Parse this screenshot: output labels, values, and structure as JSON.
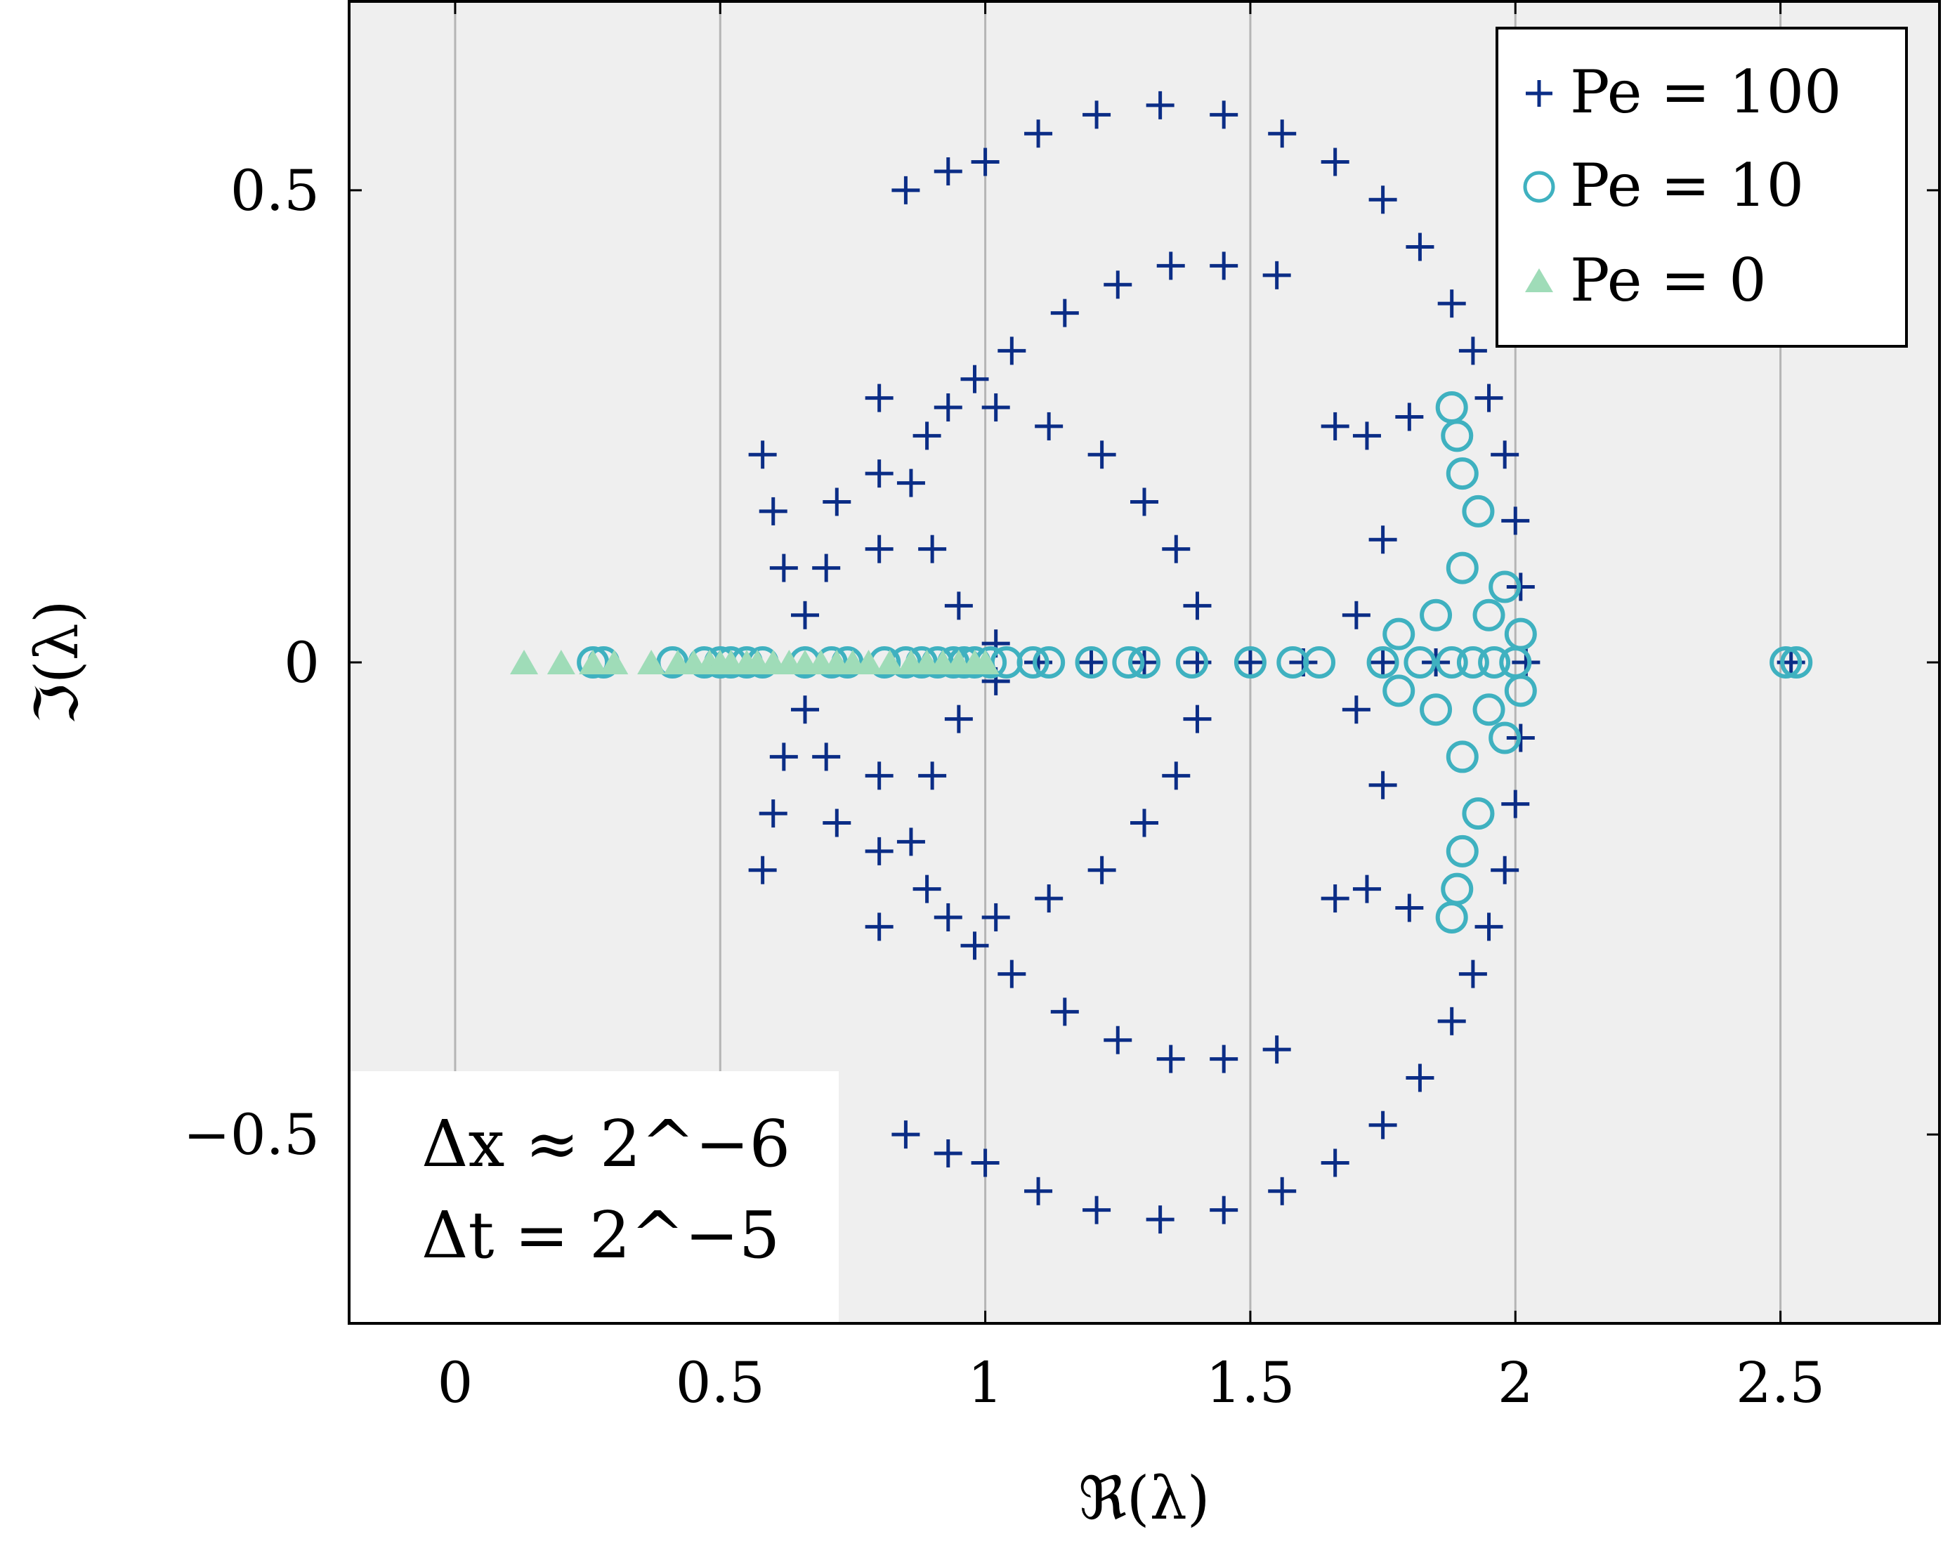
{
  "chart_data": {
    "type": "scatter",
    "xlabel": "ℜ(λ)",
    "ylabel": "ℑ(λ)",
    "xlim": [
      -0.2,
      2.8
    ],
    "ylim": [
      -0.7,
      0.7
    ],
    "xticks": [
      0,
      0.5,
      1,
      1.5,
      2,
      2.5
    ],
    "xtick_labels": [
      "0",
      "0.5",
      "1",
      "1.5",
      "2",
      "2.5"
    ],
    "yticks": [
      -0.5,
      0,
      0.5
    ],
    "ytick_labels": [
      "−0.5",
      "0",
      "0.5"
    ],
    "grid": "vertical",
    "background": "#efefef",
    "legend_position": "top-right",
    "annotation_lines": [
      "Δx ≈ 2^−6",
      "Δt = 2^−5"
    ],
    "series": [
      {
        "name": "Pe = 100",
        "marker": "plus",
        "color": "#0b2d86",
        "points": [
          [
            2.02,
            0.0
          ],
          [
            2.01,
            0.08
          ],
          [
            2.01,
            -0.08
          ],
          [
            2.0,
            0.15
          ],
          [
            2.0,
            -0.15
          ],
          [
            1.98,
            0.22
          ],
          [
            1.98,
            -0.22
          ],
          [
            1.95,
            0.28
          ],
          [
            1.95,
            -0.28
          ],
          [
            1.92,
            0.33
          ],
          [
            1.92,
            -0.33
          ],
          [
            1.88,
            0.38
          ],
          [
            1.88,
            -0.38
          ],
          [
            1.82,
            0.44
          ],
          [
            1.82,
            -0.44
          ],
          [
            1.75,
            0.49
          ],
          [
            1.75,
            -0.49
          ],
          [
            1.66,
            0.53
          ],
          [
            1.66,
            -0.53
          ],
          [
            1.56,
            0.56
          ],
          [
            1.56,
            -0.56
          ],
          [
            1.45,
            0.58
          ],
          [
            1.45,
            -0.58
          ],
          [
            1.33,
            0.59
          ],
          [
            1.33,
            -0.59
          ],
          [
            1.21,
            0.58
          ],
          [
            1.21,
            -0.58
          ],
          [
            1.1,
            0.56
          ],
          [
            1.1,
            -0.56
          ],
          [
            1.0,
            0.53
          ],
          [
            1.0,
            -0.53
          ],
          [
            0.93,
            0.52
          ],
          [
            0.93,
            -0.52
          ],
          [
            0.85,
            0.5
          ],
          [
            0.85,
            -0.5
          ],
          [
            1.55,
            0.41
          ],
          [
            1.55,
            -0.41
          ],
          [
            1.45,
            0.42
          ],
          [
            1.45,
            -0.42
          ],
          [
            1.35,
            0.42
          ],
          [
            1.35,
            -0.42
          ],
          [
            1.25,
            0.4
          ],
          [
            1.25,
            -0.4
          ],
          [
            1.15,
            0.37
          ],
          [
            1.15,
            -0.37
          ],
          [
            1.05,
            0.33
          ],
          [
            1.05,
            -0.33
          ],
          [
            0.98,
            0.3
          ],
          [
            0.98,
            -0.3
          ],
          [
            0.93,
            0.27
          ],
          [
            0.93,
            -0.27
          ],
          [
            0.89,
            0.24
          ],
          [
            0.89,
            -0.24
          ],
          [
            1.8,
            0.26
          ],
          [
            1.8,
            -0.26
          ],
          [
            1.72,
            0.24
          ],
          [
            1.72,
            -0.24
          ],
          [
            1.66,
            0.25
          ],
          [
            1.66,
            -0.25
          ],
          [
            1.75,
            0.13
          ],
          [
            1.75,
            -0.13
          ],
          [
            1.7,
            0.05
          ],
          [
            1.7,
            -0.05
          ],
          [
            1.02,
            0.27
          ],
          [
            1.02,
            -0.27
          ],
          [
            1.12,
            0.25
          ],
          [
            1.12,
            -0.25
          ],
          [
            1.22,
            0.22
          ],
          [
            1.22,
            -0.22
          ],
          [
            1.3,
            0.17
          ],
          [
            1.3,
            -0.17
          ],
          [
            1.36,
            0.12
          ],
          [
            1.36,
            -0.12
          ],
          [
            1.4,
            0.06
          ],
          [
            1.4,
            -0.06
          ],
          [
            0.58,
            0.22
          ],
          [
            0.58,
            -0.22
          ],
          [
            0.6,
            0.16
          ],
          [
            0.6,
            -0.16
          ],
          [
            0.62,
            0.1
          ],
          [
            0.62,
            -0.1
          ],
          [
            0.66,
            0.05
          ],
          [
            0.66,
            -0.05
          ],
          [
            0.7,
            0.1
          ],
          [
            0.7,
            -0.1
          ],
          [
            0.72,
            0.17
          ],
          [
            0.72,
            -0.17
          ],
          [
            0.8,
            0.28
          ],
          [
            0.8,
            -0.28
          ],
          [
            0.8,
            0.2
          ],
          [
            0.8,
            -0.2
          ],
          [
            0.8,
            0.12
          ],
          [
            0.8,
            -0.12
          ],
          [
            0.86,
            0.19
          ],
          [
            0.86,
            -0.19
          ],
          [
            0.9,
            0.12
          ],
          [
            0.9,
            -0.12
          ],
          [
            0.95,
            0.06
          ],
          [
            0.95,
            -0.06
          ],
          [
            1.02,
            0.02
          ],
          [
            1.02,
            -0.02
          ],
          [
            1.1,
            0.0
          ],
          [
            1.2,
            0.0
          ],
          [
            1.3,
            0.0
          ],
          [
            1.4,
            0.0
          ],
          [
            1.5,
            0.0
          ],
          [
            1.6,
            0.0
          ],
          [
            1.75,
            0.0
          ],
          [
            1.85,
            0.0
          ],
          [
            2.52,
            0.0
          ]
        ]
      },
      {
        "name": "Pe = 10",
        "marker": "circle",
        "color": "#3fb1c0",
        "points": [
          [
            0.26,
            0.0
          ],
          [
            0.28,
            0.0
          ],
          [
            0.41,
            0.0
          ],
          [
            0.47,
            0.0
          ],
          [
            0.5,
            0.0
          ],
          [
            0.52,
            0.0
          ],
          [
            0.55,
            0.0
          ],
          [
            0.58,
            0.0
          ],
          [
            0.66,
            0.0
          ],
          [
            0.71,
            0.0
          ],
          [
            0.74,
            0.0
          ],
          [
            0.81,
            0.0
          ],
          [
            0.85,
            0.0
          ],
          [
            0.88,
            0.0
          ],
          [
            0.91,
            0.0
          ],
          [
            0.94,
            0.0
          ],
          [
            0.96,
            0.0
          ],
          [
            0.98,
            0.0
          ],
          [
            1.01,
            0.0
          ],
          [
            1.04,
            0.0
          ],
          [
            1.09,
            0.0
          ],
          [
            1.12,
            0.0
          ],
          [
            1.2,
            0.0
          ],
          [
            1.27,
            0.0
          ],
          [
            1.3,
            0.0
          ],
          [
            1.39,
            0.0
          ],
          [
            1.5,
            0.0
          ],
          [
            1.58,
            0.0
          ],
          [
            1.63,
            0.0
          ],
          [
            1.75,
            0.0
          ],
          [
            1.78,
            0.03
          ],
          [
            1.78,
            -0.03
          ],
          [
            1.82,
            0.0
          ],
          [
            1.85,
            0.05
          ],
          [
            1.85,
            -0.05
          ],
          [
            1.88,
            0.0
          ],
          [
            1.9,
            0.1
          ],
          [
            1.9,
            -0.1
          ],
          [
            1.92,
            0.0
          ],
          [
            1.93,
            0.16
          ],
          [
            1.93,
            -0.16
          ],
          [
            1.95,
            0.05
          ],
          [
            1.95,
            -0.05
          ],
          [
            1.96,
            0.0
          ],
          [
            1.9,
            0.2
          ],
          [
            1.9,
            -0.2
          ],
          [
            1.89,
            0.24
          ],
          [
            1.89,
            -0.24
          ],
          [
            1.88,
            0.27
          ],
          [
            1.88,
            -0.27
          ],
          [
            1.98,
            0.08
          ],
          [
            1.98,
            -0.08
          ],
          [
            2.0,
            0.0
          ],
          [
            2.01,
            0.03
          ],
          [
            2.01,
            -0.03
          ],
          [
            2.51,
            0.0
          ],
          [
            2.53,
            0.0
          ]
        ]
      },
      {
        "name": "Pe = 0",
        "marker": "triangle",
        "color": "#9fdcb8",
        "points": [
          [
            0.13,
            0.0
          ],
          [
            0.2,
            0.0
          ],
          [
            0.26,
            0.0
          ],
          [
            0.3,
            0.0
          ],
          [
            0.37,
            0.0
          ],
          [
            0.42,
            0.0
          ],
          [
            0.45,
            0.0
          ],
          [
            0.48,
            0.0
          ],
          [
            0.5,
            0.0
          ],
          [
            0.52,
            0.0
          ],
          [
            0.55,
            0.0
          ],
          [
            0.57,
            0.0
          ],
          [
            0.6,
            0.0
          ],
          [
            0.63,
            0.0
          ],
          [
            0.66,
            0.0
          ],
          [
            0.69,
            0.0
          ],
          [
            0.72,
            0.0
          ],
          [
            0.75,
            0.0
          ],
          [
            0.78,
            0.0
          ],
          [
            0.82,
            0.0
          ],
          [
            0.86,
            0.0
          ],
          [
            0.89,
            0.0
          ],
          [
            0.92,
            0.0
          ],
          [
            0.95,
            0.0
          ],
          [
            0.98,
            0.0
          ],
          [
            1.0,
            0.0
          ]
        ]
      }
    ]
  }
}
